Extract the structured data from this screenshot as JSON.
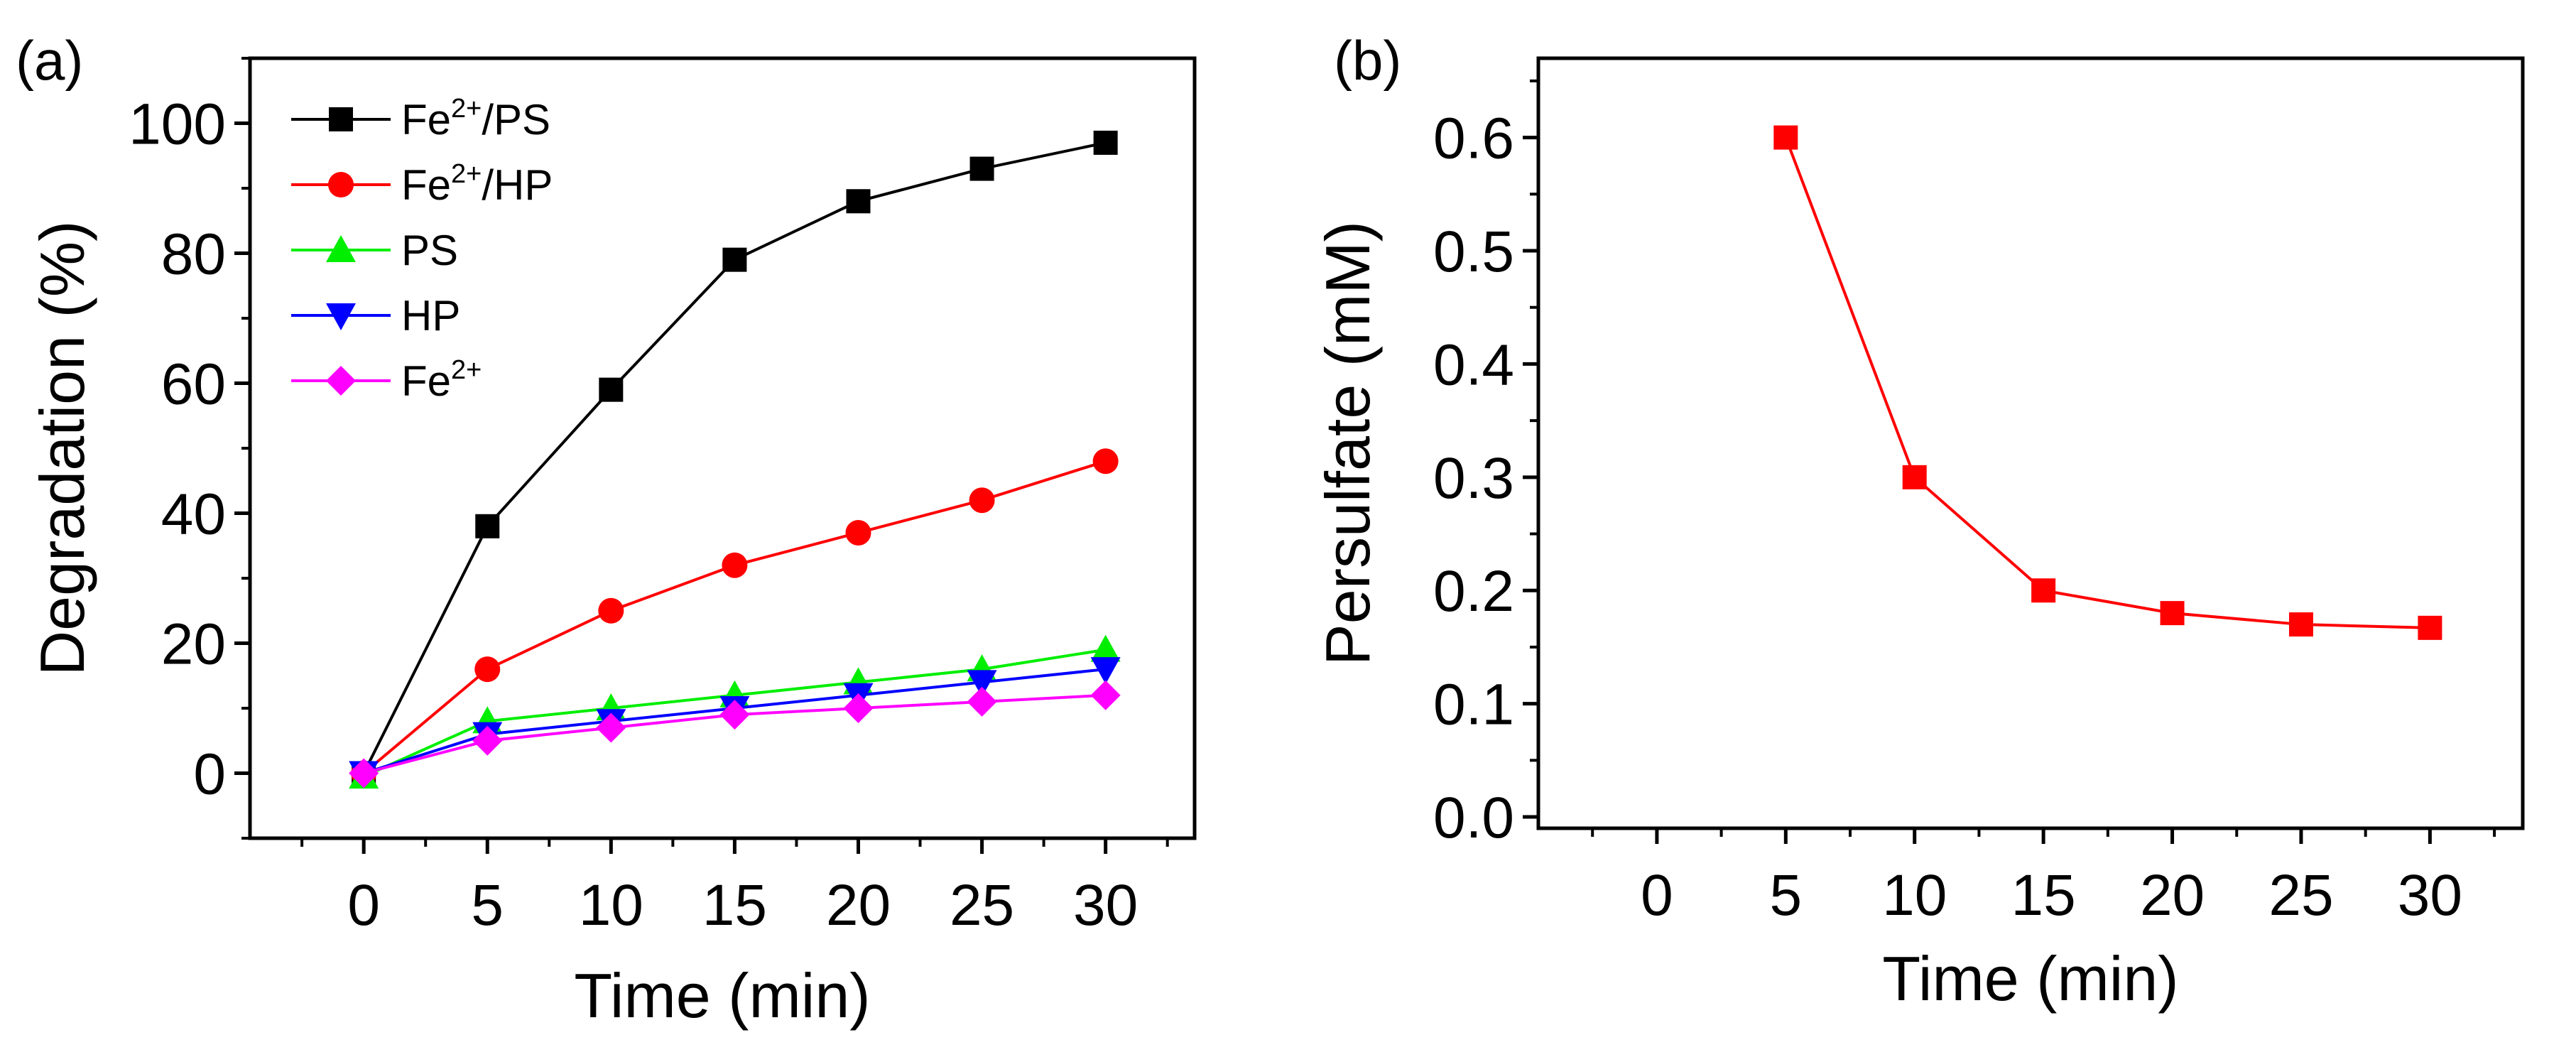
{
  "chart_data": [
    {
      "panel_label": "(a)",
      "type": "line",
      "title": "",
      "xlabel": "Time (min)",
      "ylabel": "Degradation (%)",
      "xlim": [
        -4.6,
        33.6
      ],
      "ylim": [
        -10,
        110
      ],
      "xticks": [
        0,
        5,
        10,
        15,
        20,
        25,
        30
      ],
      "xtick_labels": [
        "0",
        "5",
        "10",
        "15",
        "20",
        "25",
        "30"
      ],
      "yticks": [
        0,
        20,
        40,
        60,
        80,
        100
      ],
      "ytick_labels": [
        "0",
        "20",
        "40",
        "60",
        "80",
        "100"
      ],
      "grid": false,
      "legend_position": "top-left",
      "x": [
        0,
        5,
        10,
        15,
        20,
        25,
        30
      ],
      "series": [
        {
          "name": "Fe2+/PS",
          "label_main": "Fe",
          "label_sup": "2+",
          "label_rest": "/PS",
          "color": "#000000",
          "marker": "square",
          "values": [
            0,
            38,
            59,
            79,
            88,
            93,
            97
          ]
        },
        {
          "name": "Fe2+/HP",
          "label_main": "Fe",
          "label_sup": "2+",
          "label_rest": "/HP",
          "color": "#ff0000",
          "marker": "circle",
          "values": [
            0,
            16,
            25,
            32,
            37,
            42,
            48
          ]
        },
        {
          "name": "PS",
          "label_main": "PS",
          "label_sup": "",
          "label_rest": "",
          "color": "#00ee00",
          "marker": "triangle-up",
          "values": [
            -0.5,
            8,
            10,
            12,
            14,
            16,
            19
          ]
        },
        {
          "name": "HP",
          "label_main": "HP",
          "label_sup": "",
          "label_rest": "",
          "color": "#0000ff",
          "marker": "triangle-down",
          "values": [
            0,
            6,
            8,
            10,
            12,
            14,
            16
          ]
        },
        {
          "name": "Fe2+",
          "label_main": "Fe",
          "label_sup": "2+",
          "label_rest": "",
          "color": "#ff00ff",
          "marker": "diamond",
          "values": [
            0,
            5,
            7,
            9,
            10,
            11,
            12
          ]
        }
      ]
    },
    {
      "panel_label": "(b)",
      "type": "line",
      "title": "",
      "xlabel": "Time (min)",
      "ylabel": "Persulfate (mM)",
      "xlim": [
        -4.6,
        33.6
      ],
      "ylim": [
        -0.01,
        0.67
      ],
      "xticks": [
        0,
        5,
        10,
        15,
        20,
        25,
        30
      ],
      "xtick_labels": [
        "0",
        "5",
        "10",
        "15",
        "20",
        "25",
        "30"
      ],
      "yticks": [
        0.0,
        0.1,
        0.2,
        0.3,
        0.4,
        0.5,
        0.6
      ],
      "ytick_labels": [
        "0.0",
        "0.1",
        "0.2",
        "0.3",
        "0.4",
        "0.5",
        "0.6"
      ],
      "grid": false,
      "legend_position": "none",
      "x": [
        5,
        10,
        15,
        20,
        25,
        30
      ],
      "series": [
        {
          "name": "Persulfate",
          "color": "#ff0000",
          "marker": "square",
          "values": [
            0.6,
            0.3,
            0.2,
            0.18,
            0.17,
            0.167
          ]
        }
      ]
    }
  ]
}
